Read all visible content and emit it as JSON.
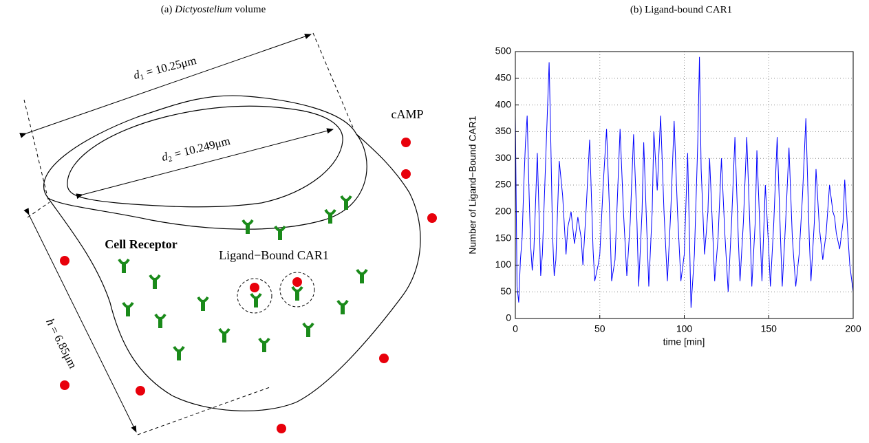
{
  "diagram": {
    "caption": {
      "prefix": "(a)",
      "italic": "Dictyostelium",
      "suffix": "volume"
    },
    "d1_label": {
      "symbol": "d",
      "subscript": "1",
      "value": "= 10.25μm"
    },
    "d2_label": {
      "symbol": "d",
      "subscript": "2",
      "value": "= 10.249μm"
    },
    "h_label": {
      "symbol": "h",
      "value": "= 6.85μm"
    },
    "camp_label": "cAMP",
    "receptor_label": "Cell Receptor",
    "bound_label": "Ligand−Bound CAR1"
  },
  "chart_data": {
    "type": "line",
    "title": "(b) Ligand-bound CAR1",
    "xlabel": "time [min]",
    "ylabel": "Number of Ligand−Bound CAR1",
    "x": [
      0,
      1,
      2,
      3,
      4,
      5,
      6,
      7,
      8,
      9,
      10,
      11,
      12,
      13,
      14,
      15,
      16,
      18,
      20,
      21,
      22,
      23,
      24,
      26,
      28,
      30,
      31,
      33,
      35,
      37,
      39,
      40,
      42,
      44,
      46,
      47,
      49,
      50,
      52,
      54,
      56,
      57,
      59,
      62,
      64,
      66,
      68,
      70,
      72,
      73,
      75,
      76,
      78,
      79,
      81,
      82,
      84,
      86,
      88,
      90,
      92,
      94,
      96,
      98,
      100,
      102,
      104,
      106,
      108,
      109,
      110,
      112,
      114,
      115,
      117,
      118,
      120,
      122,
      124,
      126,
      128,
      130,
      132,
      133,
      135,
      137,
      139,
      140,
      142,
      143,
      145,
      146,
      148,
      150,
      151,
      153,
      155,
      157,
      158,
      160,
      162,
      164,
      166,
      168,
      170,
      172,
      174,
      175,
      177,
      178,
      180,
      182,
      184,
      186,
      188,
      189,
      190,
      192,
      194,
      195,
      197,
      198,
      200
    ],
    "series": [
      {
        "color": "#0000ff",
        "values": [
          380,
          60,
          30,
          110,
          150,
          250,
          330,
          380,
          250,
          140,
          90,
          130,
          220,
          310,
          200,
          80,
          120,
          300,
          480,
          330,
          160,
          80,
          110,
          295,
          230,
          120,
          170,
          200,
          140,
          190,
          150,
          100,
          210,
          335,
          130,
          70,
          100,
          120,
          250,
          355,
          180,
          70,
          110,
          355,
          200,
          80,
          180,
          345,
          180,
          60,
          200,
          330,
          150,
          60,
          200,
          350,
          240,
          380,
          200,
          70,
          200,
          370,
          200,
          70,
          120,
          310,
          20,
          120,
          330,
          490,
          280,
          120,
          200,
          300,
          150,
          70,
          150,
          300,
          160,
          50,
          180,
          340,
          150,
          70,
          180,
          340,
          160,
          60,
          180,
          315,
          150,
          70,
          250,
          130,
          60,
          180,
          340,
          150,
          60,
          180,
          320,
          150,
          60,
          120,
          230,
          375,
          150,
          70,
          180,
          280,
          170,
          110,
          160,
          250,
          200,
          190,
          160,
          130,
          180,
          260,
          150,
          100,
          50
        ]
      }
    ],
    "xlim": [
      0,
      200
    ],
    "xticks": [
      0,
      50,
      100,
      150,
      200
    ],
    "ylim": [
      0,
      500
    ],
    "yticks": [
      0,
      50,
      100,
      150,
      200,
      250,
      300,
      350,
      400,
      450,
      500
    ],
    "grid": true
  }
}
